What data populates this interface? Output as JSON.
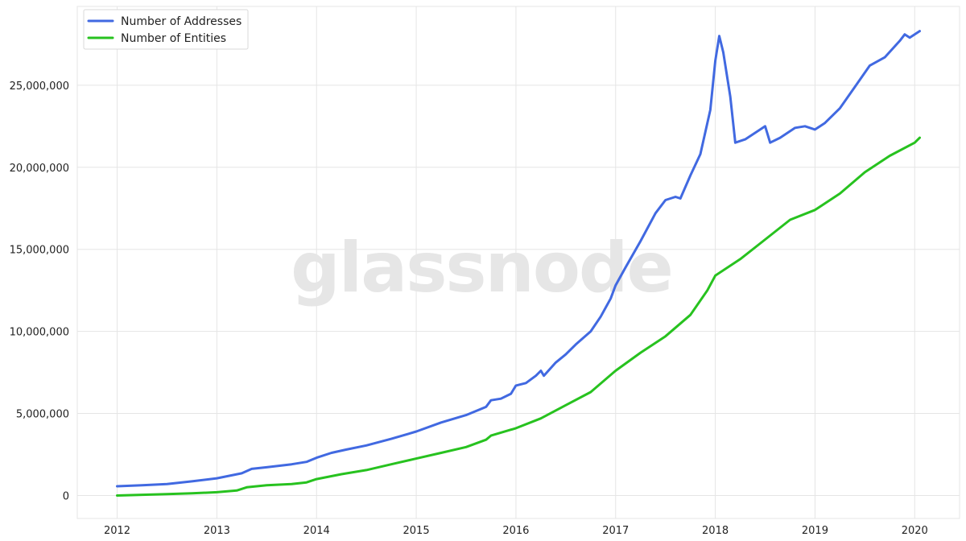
{
  "watermark": "glassnode",
  "chart_data": {
    "type": "line",
    "title": "",
    "xlabel": "",
    "ylabel": "",
    "xlim": [
      2011.6,
      2020.45
    ],
    "ylim": [
      -1400000,
      29800000
    ],
    "grid": true,
    "legend_position": "top-left",
    "x_ticks": [
      2012,
      2013,
      2014,
      2015,
      2016,
      2017,
      2018,
      2019,
      2020
    ],
    "x_tick_labels": [
      "2012",
      "2013",
      "2014",
      "2015",
      "2016",
      "2017",
      "2018",
      "2019",
      "2020"
    ],
    "y_ticks": [
      0,
      5000000,
      10000000,
      15000000,
      20000000,
      25000000
    ],
    "y_tick_labels": [
      "0",
      "5,000,000",
      "10,000,000",
      "15,000,000",
      "20,000,000",
      "25,000,000"
    ],
    "series": [
      {
        "name": "Number of Addresses",
        "color": "#4169e1",
        "points": [
          [
            2012.0,
            560000
          ],
          [
            2012.25,
            620000
          ],
          [
            2012.5,
            700000
          ],
          [
            2012.75,
            860000
          ],
          [
            2013.0,
            1050000
          ],
          [
            2013.25,
            1350000
          ],
          [
            2013.35,
            1620000
          ],
          [
            2013.5,
            1720000
          ],
          [
            2013.75,
            1900000
          ],
          [
            2013.9,
            2050000
          ],
          [
            2014.0,
            2300000
          ],
          [
            2014.15,
            2600000
          ],
          [
            2014.3,
            2800000
          ],
          [
            2014.5,
            3050000
          ],
          [
            2014.75,
            3450000
          ],
          [
            2015.0,
            3900000
          ],
          [
            2015.25,
            4450000
          ],
          [
            2015.5,
            4900000
          ],
          [
            2015.7,
            5400000
          ],
          [
            2015.75,
            5800000
          ],
          [
            2015.85,
            5900000
          ],
          [
            2015.95,
            6200000
          ],
          [
            2016.0,
            6700000
          ],
          [
            2016.1,
            6850000
          ],
          [
            2016.2,
            7300000
          ],
          [
            2016.25,
            7600000
          ],
          [
            2016.28,
            7300000
          ],
          [
            2016.4,
            8100000
          ],
          [
            2016.5,
            8600000
          ],
          [
            2016.6,
            9200000
          ],
          [
            2016.75,
            10000000
          ],
          [
            2016.85,
            10900000
          ],
          [
            2016.95,
            12000000
          ],
          [
            2017.0,
            12800000
          ],
          [
            2017.1,
            13900000
          ],
          [
            2017.25,
            15500000
          ],
          [
            2017.4,
            17200000
          ],
          [
            2017.5,
            18000000
          ],
          [
            2017.6,
            18200000
          ],
          [
            2017.65,
            18100000
          ],
          [
            2017.75,
            19500000
          ],
          [
            2017.85,
            20800000
          ],
          [
            2017.95,
            23500000
          ],
          [
            2018.0,
            26500000
          ],
          [
            2018.04,
            28000000
          ],
          [
            2018.08,
            27000000
          ],
          [
            2018.15,
            24300000
          ],
          [
            2018.2,
            21500000
          ],
          [
            2018.3,
            21700000
          ],
          [
            2018.45,
            22300000
          ],
          [
            2018.5,
            22500000
          ],
          [
            2018.55,
            21500000
          ],
          [
            2018.65,
            21800000
          ],
          [
            2018.8,
            22400000
          ],
          [
            2018.9,
            22500000
          ],
          [
            2019.0,
            22300000
          ],
          [
            2019.1,
            22700000
          ],
          [
            2019.25,
            23600000
          ],
          [
            2019.4,
            24900000
          ],
          [
            2019.55,
            26200000
          ],
          [
            2019.7,
            26700000
          ],
          [
            2019.85,
            27700000
          ],
          [
            2019.9,
            28100000
          ],
          [
            2019.95,
            27900000
          ],
          [
            2020.05,
            28300000
          ]
        ]
      },
      {
        "name": "Number of Entities",
        "color": "#27c21f",
        "points": [
          [
            2012.0,
            0
          ],
          [
            2012.25,
            40000
          ],
          [
            2012.5,
            80000
          ],
          [
            2012.75,
            130000
          ],
          [
            2013.0,
            200000
          ],
          [
            2013.2,
            300000
          ],
          [
            2013.3,
            500000
          ],
          [
            2013.5,
            620000
          ],
          [
            2013.75,
            700000
          ],
          [
            2013.9,
            800000
          ],
          [
            2014.0,
            1000000
          ],
          [
            2014.25,
            1300000
          ],
          [
            2014.5,
            1550000
          ],
          [
            2014.75,
            1900000
          ],
          [
            2015.0,
            2250000
          ],
          [
            2015.25,
            2600000
          ],
          [
            2015.5,
            2950000
          ],
          [
            2015.7,
            3400000
          ],
          [
            2015.75,
            3650000
          ],
          [
            2016.0,
            4100000
          ],
          [
            2016.25,
            4700000
          ],
          [
            2016.5,
            5500000
          ],
          [
            2016.75,
            6300000
          ],
          [
            2017.0,
            7600000
          ],
          [
            2017.25,
            8700000
          ],
          [
            2017.5,
            9700000
          ],
          [
            2017.75,
            11000000
          ],
          [
            2017.92,
            12500000
          ],
          [
            2018.0,
            13400000
          ],
          [
            2018.25,
            14400000
          ],
          [
            2018.5,
            15600000
          ],
          [
            2018.75,
            16800000
          ],
          [
            2019.0,
            17400000
          ],
          [
            2019.25,
            18400000
          ],
          [
            2019.5,
            19700000
          ],
          [
            2019.75,
            20700000
          ],
          [
            2020.0,
            21500000
          ],
          [
            2020.05,
            21800000
          ]
        ]
      }
    ]
  }
}
